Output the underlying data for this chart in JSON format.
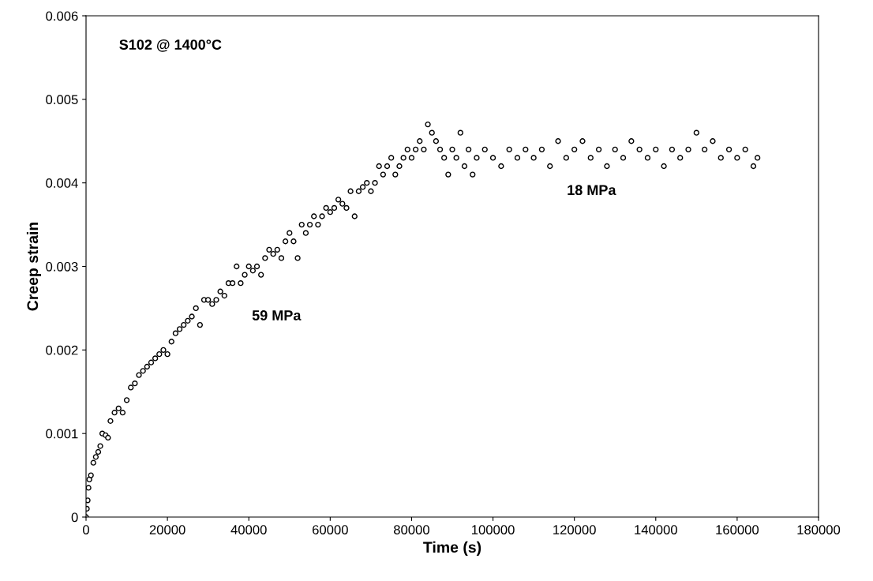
{
  "chart_data": {
    "type": "scatter",
    "xlabel": "Time (s)",
    "ylabel": "Creep strain",
    "x": [
      0,
      200,
      400,
      600,
      800,
      1200,
      1800,
      2400,
      3000,
      3500,
      4000,
      4800,
      5400,
      6000,
      7000,
      8000,
      9000,
      10000,
      11000,
      12000,
      13000,
      14000,
      15000,
      16000,
      17000,
      18000,
      19000,
      20000,
      21000,
      22000,
      23000,
      24000,
      25000,
      26000,
      27000,
      28000,
      29000,
      30000,
      31000,
      32000,
      33000,
      34000,
      35000,
      36000,
      37000,
      38000,
      39000,
      40000,
      41000,
      42000,
      43000,
      44000,
      45000,
      46000,
      47000,
      48000,
      49000,
      50000,
      51000,
      52000,
      53000,
      54000,
      55000,
      56000,
      57000,
      58000,
      59000,
      60000,
      61000,
      62000,
      63000,
      64000,
      65000,
      66000,
      67000,
      68000,
      69000,
      70000,
      71000,
      72000,
      73000,
      74000,
      75000,
      76000,
      77000,
      78000,
      79000,
      80000,
      81000,
      82000,
      83000,
      84000,
      85000,
      86000,
      87000,
      88000,
      89000,
      90000,
      91000,
      92000,
      93000,
      94000,
      95000,
      96000,
      98000,
      100000,
      102000,
      104000,
      106000,
      108000,
      110000,
      112000,
      114000,
      116000,
      118000,
      120000,
      122000,
      124000,
      126000,
      128000,
      130000,
      132000,
      134000,
      136000,
      138000,
      140000,
      142000,
      144000,
      146000,
      148000,
      150000,
      152000,
      154000,
      156000,
      158000,
      160000,
      162000,
      164000,
      165000
    ],
    "series": [
      {
        "color": "#000000",
        "values": [
          0,
          0.0001,
          0.0002,
          0.00035,
          0.00045,
          0.0005,
          0.00065,
          0.00072,
          0.00078,
          0.00085,
          0.001,
          0.00098,
          0.00095,
          0.00115,
          0.00125,
          0.0013,
          0.00125,
          0.0014,
          0.00155,
          0.0016,
          0.0017,
          0.00175,
          0.0018,
          0.00185,
          0.0019,
          0.00195,
          0.002,
          0.00195,
          0.0021,
          0.0022,
          0.00225,
          0.0023,
          0.00235,
          0.0024,
          0.0025,
          0.0023,
          0.0026,
          0.0026,
          0.00255,
          0.0026,
          0.0027,
          0.00265,
          0.0028,
          0.0028,
          0.003,
          0.0028,
          0.0029,
          0.003,
          0.00295,
          0.003,
          0.0029,
          0.0031,
          0.0032,
          0.00315,
          0.0032,
          0.0031,
          0.0033,
          0.0034,
          0.0033,
          0.0031,
          0.0035,
          0.0034,
          0.0035,
          0.0036,
          0.0035,
          0.0036,
          0.0037,
          0.00365,
          0.0037,
          0.0038,
          0.00375,
          0.0037,
          0.0039,
          0.0036,
          0.0039,
          0.00395,
          0.004,
          0.0039,
          0.004,
          0.0042,
          0.0041,
          0.0042,
          0.0043,
          0.0041,
          0.0042,
          0.0043,
          0.0044,
          0.0043,
          0.0044,
          0.0045,
          0.0044,
          0.0047,
          0.0046,
          0.0045,
          0.0044,
          0.0043,
          0.0041,
          0.0044,
          0.0043,
          0.0046,
          0.0042,
          0.0044,
          0.0041,
          0.0043,
          0.0044,
          0.0043,
          0.0042,
          0.0044,
          0.0043,
          0.0044,
          0.0043,
          0.0044,
          0.0042,
          0.0045,
          0.0043,
          0.0044,
          0.0045,
          0.0043,
          0.0044,
          0.0042,
          0.0044,
          0.0043,
          0.0045,
          0.0044,
          0.0043,
          0.0044,
          0.0042,
          0.0044,
          0.0043,
          0.0044,
          0.0046,
          0.0044,
          0.0045,
          0.0043,
          0.0044,
          0.0043,
          0.0044,
          0.0042,
          0.0043
        ]
      }
    ],
    "marker": "circle",
    "xlim": [
      0,
      180000
    ],
    "xticks": [
      0,
      20000,
      40000,
      60000,
      80000,
      100000,
      120000,
      140000,
      160000,
      180000
    ],
    "ylim": [
      0,
      0.006
    ],
    "yticks": [
      0,
      0.001,
      0.002,
      0.003,
      0.004,
      0.005,
      0.006
    ],
    "annotations": [
      "S102 @ 1400°C",
      "59 MPa",
      "18 MPa"
    ]
  }
}
